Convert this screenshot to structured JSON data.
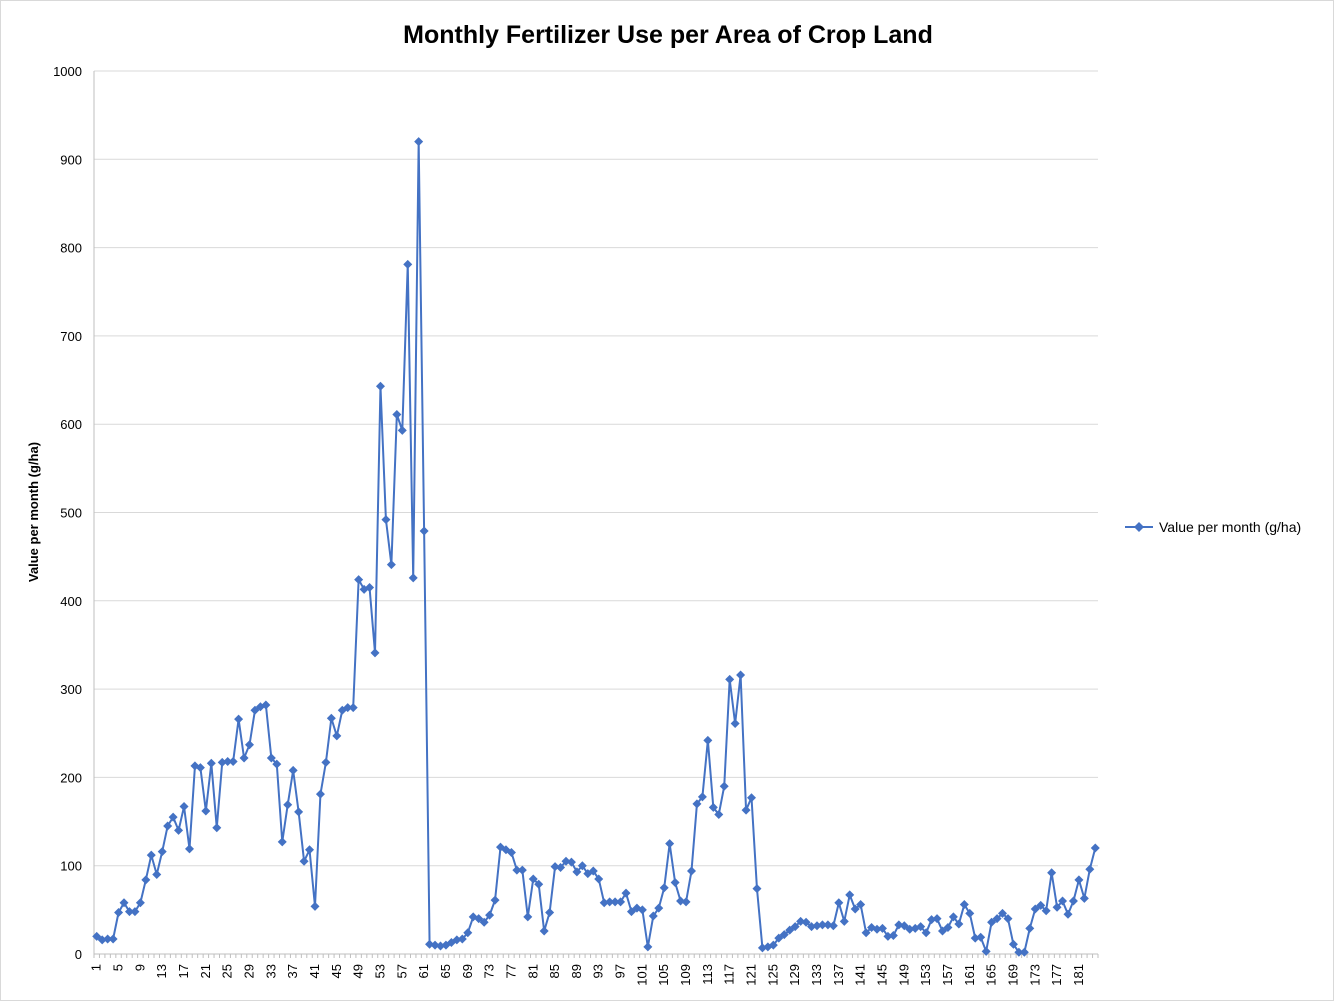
{
  "chart_data": {
    "type": "line",
    "title": "Monthly Fertilizer Use per Area of Crop Land",
    "xlabel": "",
    "ylabel": "Value per month (g/ha)",
    "ylim": [
      0,
      1000
    ],
    "y_ticks": [
      0,
      100,
      200,
      300,
      400,
      500,
      600,
      700,
      800,
      900,
      1000
    ],
    "x_tick_labels": [
      "1",
      "5",
      "9",
      "13",
      "17",
      "21",
      "25",
      "29",
      "33",
      "37",
      "41",
      "45",
      "49",
      "53",
      "57",
      "61",
      "65",
      "69",
      "73",
      "77",
      "81",
      "85",
      "89",
      "93",
      "97",
      "101",
      "105",
      "109",
      "113",
      "117",
      "121",
      "125",
      "129",
      "133",
      "137",
      "141",
      "145",
      "149",
      "153",
      "157",
      "161",
      "165",
      "169",
      "173",
      "177",
      "181"
    ],
    "grid": "horizontal",
    "legend_position": "right",
    "series_color": "#4472c4",
    "series": [
      {
        "name": "Value per month (g/ha)",
        "marker": "diamond",
        "values": [
          20,
          16,
          17,
          17,
          47,
          58,
          48,
          48,
          58,
          84,
          112,
          90,
          116,
          145,
          155,
          140,
          167,
          119,
          213,
          211,
          162,
          216,
          143,
          217,
          218,
          218,
          266,
          222,
          237,
          276,
          280,
          282,
          222,
          215,
          127,
          169,
          208,
          161,
          105,
          118,
          54,
          181,
          217,
          267,
          247,
          276,
          279,
          279,
          424,
          413,
          415,
          341,
          643,
          492,
          441,
          611,
          593,
          781,
          426,
          920,
          479,
          11,
          10,
          9,
          10,
          13,
          16,
          17,
          24,
          42,
          40,
          36,
          44,
          61,
          121,
          118,
          115,
          95,
          95,
          42,
          85,
          79,
          26,
          47,
          99,
          98,
          105,
          104,
          93,
          100,
          91,
          94,
          85,
          58,
          59,
          59,
          59,
          69,
          48,
          52,
          50,
          8,
          43,
          52,
          75,
          125,
          81,
          60,
          59,
          94,
          170,
          178,
          242,
          166,
          158,
          190,
          311,
          261,
          316,
          163,
          177,
          74,
          7,
          8,
          10,
          18,
          22,
          27,
          31,
          37,
          36,
          31,
          32,
          33,
          33,
          32,
          58,
          37,
          67,
          51,
          56,
          24,
          30,
          28,
          29,
          20,
          21,
          33,
          32,
          28,
          29,
          31,
          24,
          39,
          40,
          26,
          30,
          42,
          34,
          56,
          46,
          18,
          19,
          3,
          36,
          40,
          46,
          40,
          11,
          2,
          2,
          29,
          51,
          55,
          49,
          92,
          53,
          60,
          45,
          60,
          84,
          63,
          96,
          120
        ]
      }
    ]
  }
}
